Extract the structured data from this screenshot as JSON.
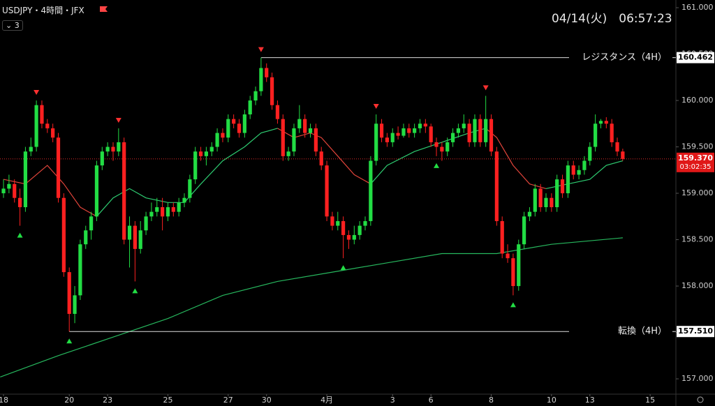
{
  "header": {
    "symbol": "USDJPY・4時間・JFX",
    "badge": "3",
    "clock": "04/14(火)　06:57:23"
  },
  "chart_data": {
    "type": "candlestick",
    "up_color": "#22dd44",
    "down_color": "#ff2020",
    "ohlc": [
      [
        159.0,
        159.15,
        158.95,
        159.05
      ],
      [
        159.05,
        159.2,
        159.0,
        159.1
      ],
      [
        159.1,
        159.15,
        158.9,
        158.95
      ],
      [
        158.95,
        159.05,
        158.65,
        158.85
      ],
      [
        158.85,
        159.5,
        158.8,
        159.45
      ],
      [
        159.45,
        159.6,
        159.4,
        159.5
      ],
      [
        159.5,
        160.0,
        159.45,
        159.95
      ],
      [
        159.95,
        160.0,
        159.7,
        159.75
      ],
      [
        159.75,
        159.8,
        159.65,
        159.7
      ],
      [
        159.7,
        159.75,
        159.55,
        159.6
      ],
      [
        159.6,
        159.65,
        158.9,
        158.95
      ],
      [
        158.95,
        159.0,
        158.1,
        158.15
      ],
      [
        158.15,
        158.2,
        157.51,
        157.7
      ],
      [
        157.7,
        158.0,
        157.6,
        157.9
      ],
      [
        157.9,
        158.5,
        157.85,
        158.45
      ],
      [
        158.45,
        158.65,
        158.4,
        158.6
      ],
      [
        158.6,
        158.8,
        158.5,
        158.75
      ],
      [
        158.75,
        159.35,
        158.7,
        159.3
      ],
      [
        159.3,
        159.5,
        159.25,
        159.45
      ],
      [
        159.45,
        159.55,
        159.4,
        159.5
      ],
      [
        159.5,
        159.55,
        159.35,
        159.45
      ],
      [
        159.45,
        159.7,
        159.4,
        159.55
      ],
      [
        159.55,
        159.6,
        158.45,
        158.5
      ],
      [
        158.5,
        158.75,
        158.2,
        158.65
      ],
      [
        158.65,
        158.7,
        158.05,
        158.4
      ],
      [
        158.4,
        158.7,
        158.35,
        158.6
      ],
      [
        158.6,
        158.8,
        158.55,
        158.75
      ],
      [
        158.75,
        158.9,
        158.7,
        158.8
      ],
      [
        158.8,
        158.95,
        158.75,
        158.85
      ],
      [
        158.85,
        158.95,
        158.6,
        158.75
      ],
      [
        158.75,
        158.9,
        158.7,
        158.85
      ],
      [
        158.85,
        158.9,
        158.75,
        158.8
      ],
      [
        158.8,
        158.95,
        158.75,
        158.9
      ],
      [
        158.9,
        159.0,
        158.85,
        158.95
      ],
      [
        158.95,
        159.2,
        158.9,
        159.15
      ],
      [
        159.15,
        159.5,
        159.1,
        159.45
      ],
      [
        159.45,
        159.5,
        159.35,
        159.4
      ],
      [
        159.4,
        159.5,
        159.3,
        159.45
      ],
      [
        159.45,
        159.55,
        159.4,
        159.5
      ],
      [
        159.5,
        159.7,
        159.45,
        159.65
      ],
      [
        159.65,
        159.7,
        159.55,
        159.6
      ],
      [
        159.6,
        159.85,
        159.55,
        159.8
      ],
      [
        159.8,
        159.85,
        159.7,
        159.75
      ],
      [
        159.75,
        159.8,
        159.6,
        159.65
      ],
      [
        159.65,
        159.9,
        159.6,
        159.85
      ],
      [
        159.85,
        160.05,
        159.8,
        160.0
      ],
      [
        160.0,
        160.15,
        159.95,
        160.1
      ],
      [
        160.1,
        160.462,
        160.05,
        160.35
      ],
      [
        160.35,
        160.4,
        160.2,
        160.25
      ],
      [
        160.25,
        160.3,
        159.9,
        159.95
      ],
      [
        159.95,
        160.0,
        159.75,
        159.8
      ],
      [
        159.8,
        159.85,
        159.35,
        159.4
      ],
      [
        159.4,
        159.5,
        159.35,
        159.45
      ],
      [
        159.45,
        159.75,
        159.4,
        159.7
      ],
      [
        159.7,
        159.95,
        159.65,
        159.8
      ],
      [
        159.8,
        159.85,
        159.6,
        159.65
      ],
      [
        159.65,
        159.75,
        159.6,
        159.7
      ],
      [
        159.7,
        159.75,
        159.4,
        159.45
      ],
      [
        159.45,
        159.5,
        159.25,
        159.3
      ],
      [
        159.3,
        159.35,
        158.7,
        158.75
      ],
      [
        158.75,
        158.8,
        158.6,
        158.65
      ],
      [
        158.65,
        158.8,
        158.6,
        158.7
      ],
      [
        158.7,
        158.75,
        158.3,
        158.55
      ],
      [
        158.55,
        158.6,
        158.4,
        158.5
      ],
      [
        158.5,
        158.65,
        158.45,
        158.55
      ],
      [
        158.55,
        158.7,
        158.5,
        158.65
      ],
      [
        158.65,
        158.75,
        158.6,
        158.7
      ],
      [
        158.7,
        159.4,
        158.65,
        159.35
      ],
      [
        159.35,
        159.85,
        159.3,
        159.75
      ],
      [
        159.75,
        159.8,
        159.55,
        159.6
      ],
      [
        159.6,
        159.65,
        159.5,
        159.55
      ],
      [
        159.55,
        159.7,
        159.5,
        159.65
      ],
      [
        159.65,
        159.72,
        159.58,
        159.62
      ],
      [
        159.62,
        159.75,
        159.6,
        159.7
      ],
      [
        159.7,
        159.75,
        159.6,
        159.65
      ],
      [
        159.65,
        159.75,
        159.6,
        159.7
      ],
      [
        159.7,
        159.8,
        159.65,
        159.75
      ],
      [
        159.75,
        159.8,
        159.65,
        159.72
      ],
      [
        159.72,
        159.75,
        159.5,
        159.55
      ],
      [
        159.55,
        159.6,
        159.4,
        159.5
      ],
      [
        159.5,
        159.55,
        159.35,
        159.45
      ],
      [
        159.45,
        159.6,
        159.4,
        159.55
      ],
      [
        159.55,
        159.7,
        159.5,
        159.65
      ],
      [
        159.65,
        159.75,
        159.6,
        159.7
      ],
      [
        159.7,
        159.85,
        159.65,
        159.75
      ],
      [
        159.75,
        159.8,
        159.5,
        159.55
      ],
      [
        159.55,
        159.85,
        159.5,
        159.8
      ],
      [
        159.8,
        159.85,
        159.5,
        159.55
      ],
      [
        159.55,
        160.05,
        159.5,
        159.8
      ],
      [
        159.8,
        159.85,
        159.4,
        159.45
      ],
      [
        159.45,
        159.5,
        158.65,
        158.7
      ],
      [
        158.7,
        158.75,
        158.3,
        158.35
      ],
      [
        158.35,
        158.45,
        158.25,
        158.3
      ],
      [
        158.3,
        158.35,
        157.9,
        158.0
      ],
      [
        158.0,
        158.5,
        157.95,
        158.45
      ],
      [
        158.45,
        158.8,
        158.4,
        158.75
      ],
      [
        158.75,
        158.85,
        158.7,
        158.8
      ],
      [
        158.8,
        159.1,
        158.75,
        159.05
      ],
      [
        159.05,
        159.1,
        158.8,
        158.85
      ],
      [
        158.85,
        159.0,
        158.8,
        158.95
      ],
      [
        158.95,
        159.0,
        158.8,
        158.85
      ],
      [
        158.85,
        159.2,
        158.8,
        159.15
      ],
      [
        159.15,
        159.2,
        158.95,
        159.0
      ],
      [
        159.0,
        159.35,
        158.95,
        159.3
      ],
      [
        159.3,
        159.35,
        159.15,
        159.2
      ],
      [
        159.2,
        159.3,
        159.15,
        159.25
      ],
      [
        159.25,
        159.4,
        159.2,
        159.35
      ],
      [
        159.35,
        159.55,
        159.3,
        159.5
      ],
      [
        159.5,
        159.85,
        159.45,
        159.75
      ],
      [
        159.75,
        159.8,
        159.7,
        159.78
      ],
      [
        159.78,
        159.82,
        159.7,
        159.75
      ],
      [
        159.75,
        159.8,
        159.5,
        159.55
      ],
      [
        159.55,
        159.6,
        159.4,
        159.45
      ],
      [
        159.45,
        159.48,
        159.35,
        159.37
      ]
    ],
    "lines": [
      {
        "color": "#e0443a",
        "x": [
          0,
          4,
          8,
          11,
          14,
          17
        ],
        "values": [
          159.15,
          159.1,
          159.3,
          159.1,
          158.85,
          158.75
        ]
      },
      {
        "color": "#2ecc71",
        "x": [
          17,
          20,
          23,
          26,
          30,
          33,
          36,
          40,
          44,
          47,
          50
        ],
        "values": [
          158.75,
          158.95,
          159.05,
          158.95,
          158.9,
          158.9,
          159.1,
          159.35,
          159.5,
          159.65,
          159.7
        ]
      },
      {
        "color": "#e0443a",
        "x": [
          50,
          53,
          56,
          58,
          61,
          64,
          67
        ],
        "values": [
          159.7,
          159.6,
          159.65,
          159.6,
          159.4,
          159.2,
          159.1
        ]
      },
      {
        "color": "#2ecc71",
        "x": [
          67,
          70,
          75,
          80,
          85,
          88
        ],
        "values": [
          159.1,
          159.3,
          159.45,
          159.55,
          159.65,
          159.7
        ]
      },
      {
        "color": "#e0443a",
        "x": [
          88,
          90,
          93,
          96,
          99
        ],
        "values": [
          159.7,
          159.6,
          159.3,
          159.1,
          159.05
        ]
      },
      {
        "color": "#2ecc71",
        "x": [
          99,
          103,
          107,
          110,
          113
        ],
        "values": [
          159.05,
          159.1,
          159.15,
          159.3,
          159.35
        ]
      },
      {
        "color": "#27b85e",
        "x": [
          -0.6,
          10,
          20,
          30,
          40,
          50,
          60,
          70,
          80,
          90,
          100,
          113
        ],
        "values": [
          157.02,
          157.25,
          157.45,
          157.65,
          157.9,
          158.05,
          158.15,
          158.25,
          158.35,
          158.35,
          158.45,
          158.52
        ]
      }
    ],
    "signals_up": [
      3,
      12,
      24,
      62,
      79,
      93
    ],
    "signals_down": [
      6,
      21,
      47,
      68,
      88
    ],
    "levels": [
      {
        "name": "レジスタンス（4H）",
        "value": {
          "value": 160.462,
          "label": "160.462"
        },
        "start": 47
      },
      {
        "name": "転換（4H）",
        "value": {
          "value": 157.51,
          "label": "157.510"
        },
        "start": 12
      }
    ],
    "current": {
      "value": {
        "value": 159.37,
        "label": "159.370"
      },
      "countdown": "03:02:35"
    },
    "xlim": [
      -0.64,
      122.7
    ],
    "ylim": [
      156.835,
      161.083
    ],
    "yticks": [
      {
        "value": 157,
        "label": "157.000"
      },
      {
        "value": 157.5,
        "label": "157.500"
      },
      {
        "value": 158,
        "label": "158.000"
      },
      {
        "value": 158.5,
        "label": "158.500"
      },
      {
        "value": 159,
        "label": "159.000"
      },
      {
        "value": 159.5,
        "label": "159.500"
      },
      {
        "value": 160,
        "label": "160.000"
      },
      {
        "value": 160.5,
        "label": "160.500"
      },
      {
        "value": 161,
        "label": "161.000"
      }
    ],
    "xticks": [
      {
        "value": 0,
        "label": "18"
      },
      {
        "value": 12,
        "label": "20"
      },
      {
        "value": 19,
        "label": "23"
      },
      {
        "value": 30,
        "label": "25"
      },
      {
        "value": 41,
        "label": "27"
      },
      {
        "value": 48,
        "label": "30"
      },
      {
        "value": 59,
        "label": "4月"
      },
      {
        "value": 71,
        "label": "3"
      },
      {
        "value": 78,
        "label": "6"
      },
      {
        "value": 89,
        "label": "8"
      },
      {
        "value": 100,
        "label": "10"
      },
      {
        "value": 107,
        "label": "13"
      },
      {
        "value": 118,
        "label": "15"
      }
    ]
  }
}
